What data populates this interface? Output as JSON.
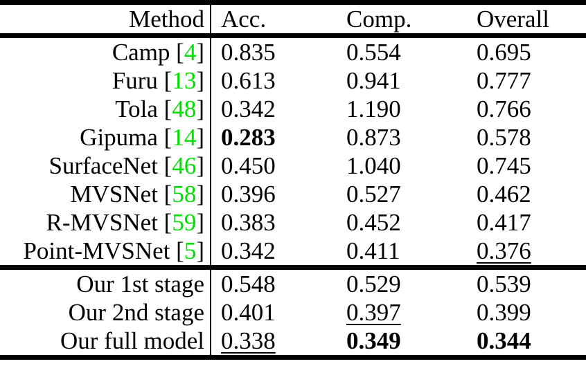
{
  "table": {
    "header": {
      "method": "Method",
      "acc": "Acc.",
      "comp": "Comp.",
      "overall": "Overall"
    },
    "rows": [
      {
        "method_prefix": "Camp [",
        "cite": "4",
        "method_suffix": "]",
        "acc": "0.835",
        "comp": "0.554",
        "overall": "0.695",
        "acc_em": "",
        "comp_em": "",
        "overall_em": ""
      },
      {
        "method_prefix": "Furu [",
        "cite": "13",
        "method_suffix": "]",
        "acc": "0.613",
        "comp": "0.941",
        "overall": "0.777",
        "acc_em": "",
        "comp_em": "",
        "overall_em": ""
      },
      {
        "method_prefix": "Tola [",
        "cite": "48",
        "method_suffix": "]",
        "acc": "0.342",
        "comp": "1.190",
        "overall": "0.766",
        "acc_em": "",
        "comp_em": "",
        "overall_em": ""
      },
      {
        "method_prefix": "Gipuma [",
        "cite": "14",
        "method_suffix": "]",
        "acc": "0.283",
        "comp": "0.873",
        "overall": "0.578",
        "acc_em": "bold",
        "comp_em": "",
        "overall_em": ""
      },
      {
        "method_prefix": "SurfaceNet [",
        "cite": "46",
        "method_suffix": "]",
        "acc": "0.450",
        "comp": "1.040",
        "overall": "0.745",
        "acc_em": "",
        "comp_em": "",
        "overall_em": ""
      },
      {
        "method_prefix": "MVSNet [",
        "cite": "58",
        "method_suffix": "]",
        "acc": "0.396",
        "comp": "0.527",
        "overall": "0.462",
        "acc_em": "",
        "comp_em": "",
        "overall_em": ""
      },
      {
        "method_prefix": "R-MVSNet [",
        "cite": "59",
        "method_suffix": "]",
        "acc": "0.383",
        "comp": "0.452",
        "overall": "0.417",
        "acc_em": "",
        "comp_em": "",
        "overall_em": ""
      },
      {
        "method_prefix": "Point-MVSNet [",
        "cite": "5",
        "method_suffix": "]",
        "acc": "0.342",
        "comp": "0.411",
        "overall": "0.376",
        "acc_em": "",
        "comp_em": "",
        "overall_em": "underline"
      },
      {
        "method_prefix": "Our 1st stage",
        "cite": "",
        "method_suffix": "",
        "acc": "0.548",
        "comp": "0.529",
        "overall": "0.539",
        "acc_em": "",
        "comp_em": "",
        "overall_em": ""
      },
      {
        "method_prefix": "Our 2nd stage",
        "cite": "",
        "method_suffix": "",
        "acc": "0.401",
        "comp": "0.397",
        "overall": "0.399",
        "acc_em": "",
        "comp_em": "underline",
        "overall_em": ""
      },
      {
        "method_prefix": "Our full model",
        "cite": "",
        "method_suffix": "",
        "acc": "0.338",
        "comp": "0.349",
        "overall": "0.344",
        "acc_em": "underline",
        "comp_em": "bold",
        "overall_em": "bold"
      }
    ],
    "colors": {
      "cite_green": "#00e000",
      "text_black": "#000000",
      "rule_black": "#000000",
      "background_white": "#ffffff"
    }
  }
}
